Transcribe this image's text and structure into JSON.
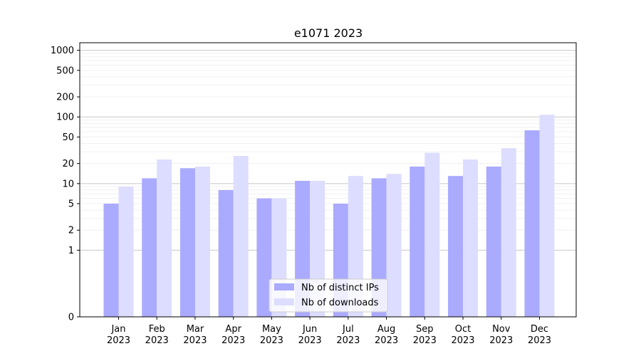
{
  "chart_data": {
    "type": "bar",
    "title": "e1071 2023",
    "xlabel": "",
    "ylabel": "",
    "yscale": "symlog",
    "ylim": [
      0,
      1300
    ],
    "yticks": [
      0,
      1,
      2,
      5,
      10,
      20,
      50,
      100,
      200,
      500,
      1000
    ],
    "ytick_labels": [
      "0",
      "1",
      "2",
      "5",
      "10",
      "20",
      "50",
      "100",
      "200",
      "500",
      "1000"
    ],
    "categories": [
      "Jan",
      "Feb",
      "Mar",
      "Apr",
      "May",
      "Jun",
      "Jul",
      "Aug",
      "Sep",
      "Oct",
      "Nov",
      "Dec"
    ],
    "category_year": "2023",
    "series": [
      {
        "name": "Nb of distinct IPs",
        "color": "#aaaaff",
        "values": [
          5,
          12,
          17,
          8,
          6,
          11,
          5,
          12,
          18,
          13,
          18,
          63
        ]
      },
      {
        "name": "Nb of downloads",
        "color": "#ddddff",
        "values": [
          9,
          23,
          18,
          26,
          6,
          11,
          13,
          14,
          29,
          23,
          34,
          108
        ]
      }
    ],
    "grid": true,
    "legend_position": "bottom-center"
  }
}
